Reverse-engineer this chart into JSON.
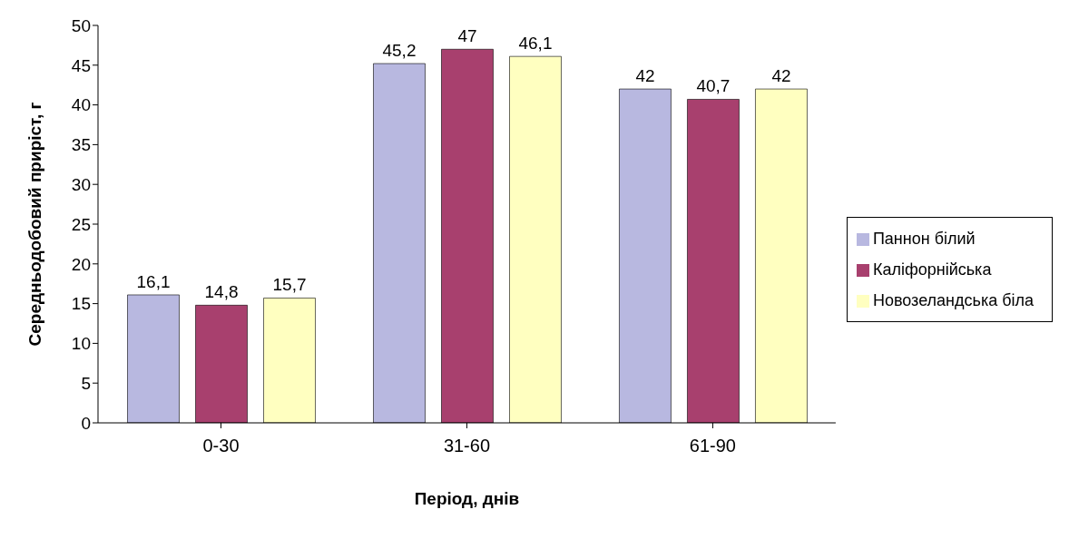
{
  "chart_data": {
    "type": "bar",
    "xlabel": "Період, днів",
    "ylabel": "Середньодобовий приріст, г",
    "categories": [
      "0-30",
      "31-60",
      "61-90"
    ],
    "series": [
      {
        "name": "Паннон білий",
        "color": "#b8b8e0",
        "values": [
          16.1,
          45.2,
          42
        ],
        "value_labels": [
          "16,1",
          "45,2",
          "42"
        ]
      },
      {
        "name": "Каліфорнійська",
        "color": "#a8406e",
        "values": [
          14.8,
          47,
          40.7
        ],
        "value_labels": [
          "14,8",
          "47",
          "40,7"
        ]
      },
      {
        "name": "Новозеландська біла",
        "color": "#ffffc0",
        "values": [
          15.7,
          46.1,
          42
        ],
        "value_labels": [
          "15,7",
          "46,1",
          "42"
        ]
      }
    ],
    "ylim": [
      0,
      50
    ],
    "yticks": [
      0,
      5,
      10,
      15,
      20,
      25,
      30,
      35,
      40,
      45,
      50
    ],
    "grid": false,
    "legend": "right"
  }
}
